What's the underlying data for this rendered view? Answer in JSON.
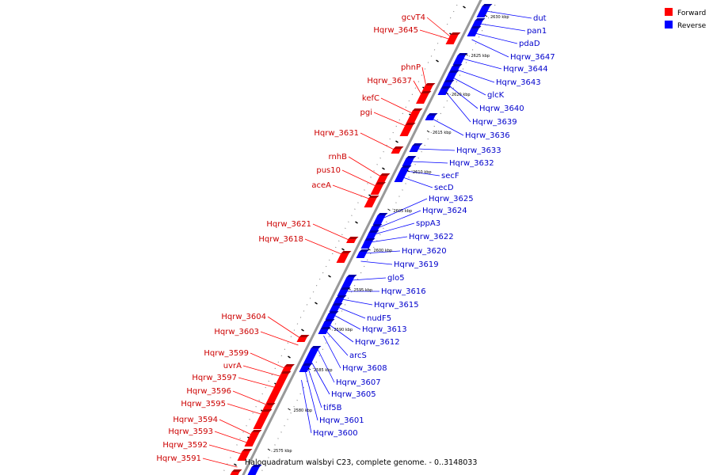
{
  "legend": [
    {
      "label": "Forward",
      "color": "#ff0000"
    },
    {
      "label": "Reverse",
      "color": "#0000ff"
    }
  ],
  "caption": "Haloquadratum walsbyi C23, complete genome. - 0..3148033",
  "colors": {
    "forward": "#ff0000",
    "forward_dark": "#aa0000",
    "reverse": "#0000ff",
    "reverse_dark": "#0000aa",
    "backbone": "#999999"
  },
  "ticks": [
    "2630 kbp",
    "2625 kbp",
    "2620 kbp",
    "2615 kbp",
    "2610 kbp",
    "2605 kbp",
    "2600 kbp",
    "2595 kbp",
    "2590 kbp",
    "2585 kbp",
    "2580 kbp",
    "2575 kbp"
  ],
  "forward_labels": [
    "gcvT4",
    "Hqrw_3645",
    "phnP",
    "Hqrw_3637",
    "kefC",
    "pgi",
    "Hqrw_3631",
    "rnhB",
    "pus10",
    "aceA",
    "Hqrw_3621",
    "Hqrw_3618",
    "Hqrw_3604",
    "Hqrw_3603",
    "Hqrw_3599",
    "uvrA",
    "Hqrw_3597",
    "Hqrw_3596",
    "Hqrw_3595",
    "Hqrw_3594",
    "Hqrw_3593",
    "Hqrw_3592",
    "Hqrw_3591"
  ],
  "reverse_labels": [
    "dut",
    "pan1",
    "pdaD",
    "Hqrw_3647",
    "Hqrw_3644",
    "Hqrw_3643",
    "glcK",
    "Hqrw_3640",
    "Hqrw_3639",
    "Hqrw_3636",
    "Hqrw_3633",
    "Hqrw_3632",
    "secF",
    "secD",
    "Hqrw_3625",
    "Hqrw_3624",
    "sppA3",
    "Hqrw_3622",
    "Hqrw_3620",
    "Hqrw_3619",
    "glo5",
    "Hqrw_3616",
    "Hqrw_3615",
    "nudF5",
    "Hqrw_3613",
    "Hqrw_3612",
    "arcS",
    "Hqrw_3608",
    "Hqrw_3607",
    "Hqrw_3605",
    "tif5B",
    "Hqrw_3601",
    "Hqrw_3600"
  ]
}
